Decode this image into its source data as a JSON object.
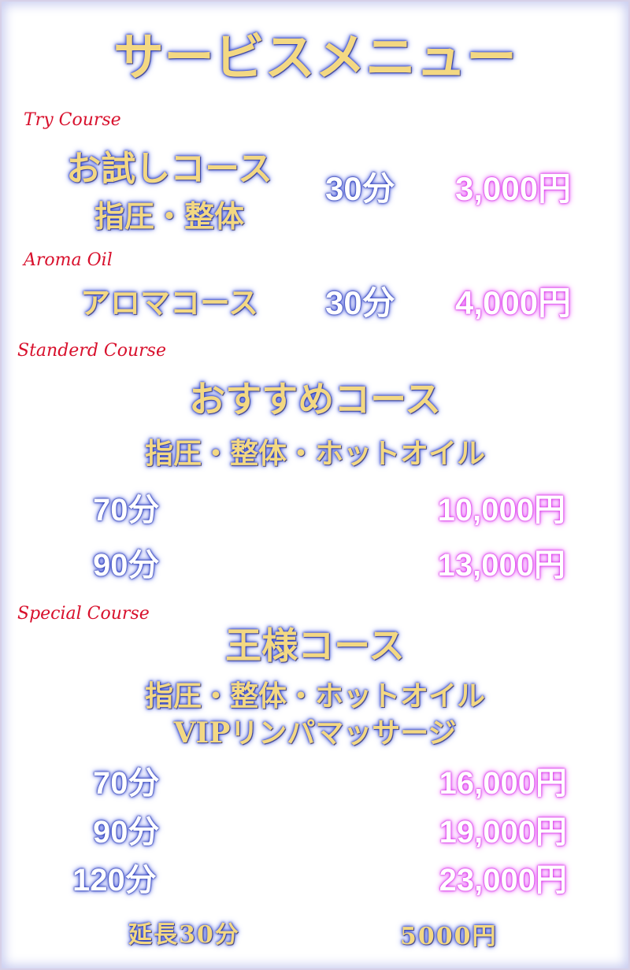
{
  "title": "サービスメニュー",
  "try": {
    "label": "Try Course",
    "name": "お試しコース",
    "sub": "指圧・整体",
    "time": "30分",
    "price": "3,000円"
  },
  "aroma": {
    "label": "Aroma Oil",
    "name": "アロマコース",
    "time": "30分",
    "price": "4,000円"
  },
  "standard": {
    "label": "Standerd Course",
    "name": "おすすめコース",
    "sub": "指圧・整体・ホットオイル",
    "rows": [
      {
        "time": "70分",
        "price": "10,000円"
      },
      {
        "time": "90分",
        "price": "13,000円"
      }
    ]
  },
  "special": {
    "label": "Special Course",
    "name": "王様コース",
    "sub": "指圧・整体・ホットオイル",
    "sub2": "VIPリンパマッサージ",
    "rows": [
      {
        "time": "70分",
        "price": "16,000円"
      },
      {
        "time": "90分",
        "price": "19,000円"
      },
      {
        "time": "120分",
        "price": "23,000円"
      }
    ]
  },
  "extension": {
    "label": "延長30分",
    "price": "5000円"
  },
  "colors": {
    "gold": "#f3d882",
    "glow_blue": "#2a3fc8",
    "glow_pink": "#e040f0",
    "script_red": "#d8102c"
  }
}
